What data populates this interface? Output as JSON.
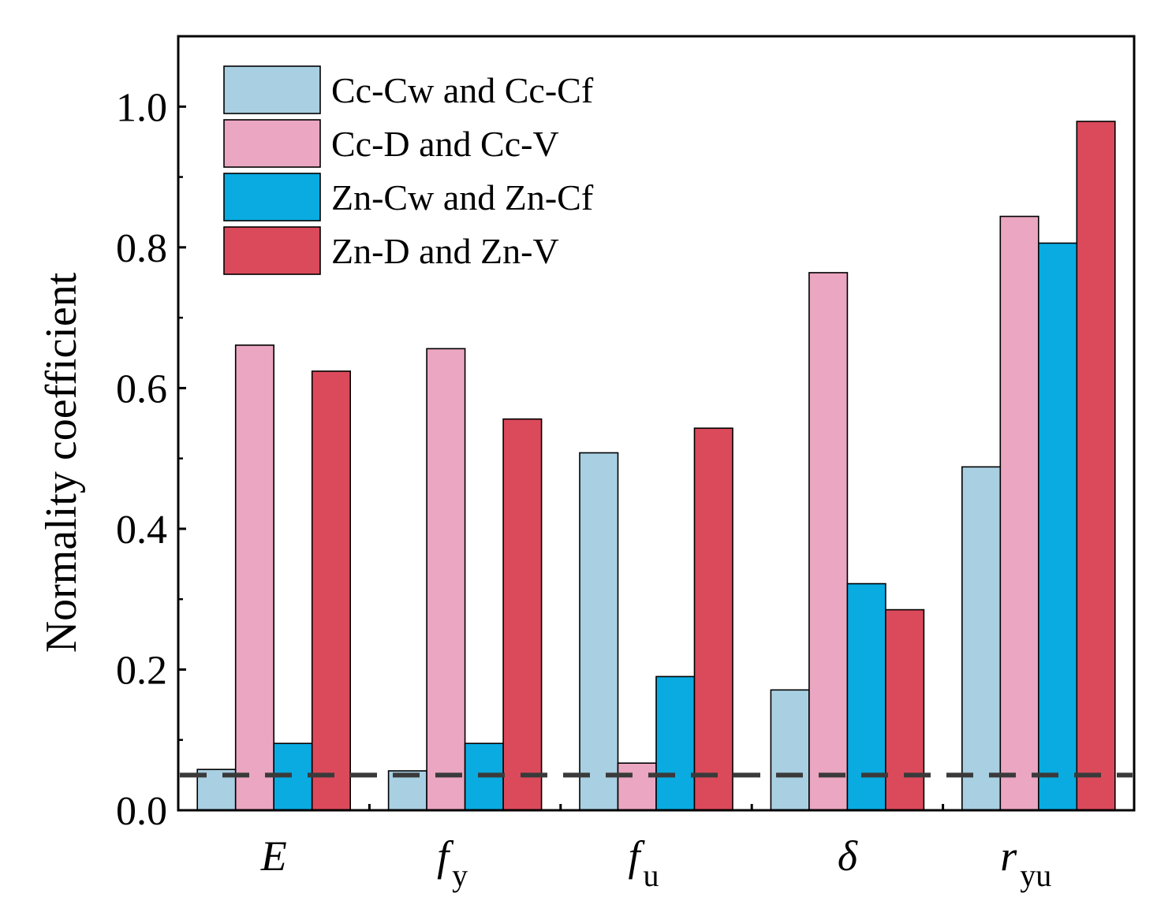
{
  "chart_data": {
    "type": "bar",
    "title": "",
    "xlabel": "",
    "ylabel": "Normality coefficient",
    "ylim": [
      0,
      1.1
    ],
    "yticks": [
      "0.0",
      "0.2",
      "0.4",
      "0.6",
      "0.8",
      "1.0"
    ],
    "ytick_values": [
      0,
      0.2,
      0.4,
      0.6,
      0.8,
      1.0
    ],
    "categories": [
      {
        "main": "E",
        "sub": ""
      },
      {
        "main": "f",
        "sub": "y"
      },
      {
        "main": "f",
        "sub": "u"
      },
      {
        "main": "δ",
        "sub": ""
      },
      {
        "main": "r",
        "sub": "yu"
      }
    ],
    "series": [
      {
        "name": "Cc-Cw and Cc-Cf",
        "color": "#a8cfe2",
        "values": [
          0.058,
          0.056,
          0.508,
          0.171,
          0.488
        ]
      },
      {
        "name": "Cc-D and Cc-V",
        "color": "#eba6c1",
        "values": [
          0.661,
          0.656,
          0.067,
          0.764,
          0.844
        ]
      },
      {
        "name": "Zn-Cw and Zn-Cf",
        "color": "#0aabe1",
        "values": [
          0.095,
          0.095,
          0.19,
          0.322,
          0.806
        ]
      },
      {
        "name": "Zn-D and Zn-V",
        "color": "#db4a5b",
        "values": [
          0.624,
          0.556,
          0.543,
          0.285,
          0.979
        ]
      }
    ],
    "reference_line": {
      "value": 0.05,
      "style": "dashed",
      "color": "#3a3a3a"
    },
    "legend": {
      "position": "top-left"
    },
    "grid": false
  }
}
